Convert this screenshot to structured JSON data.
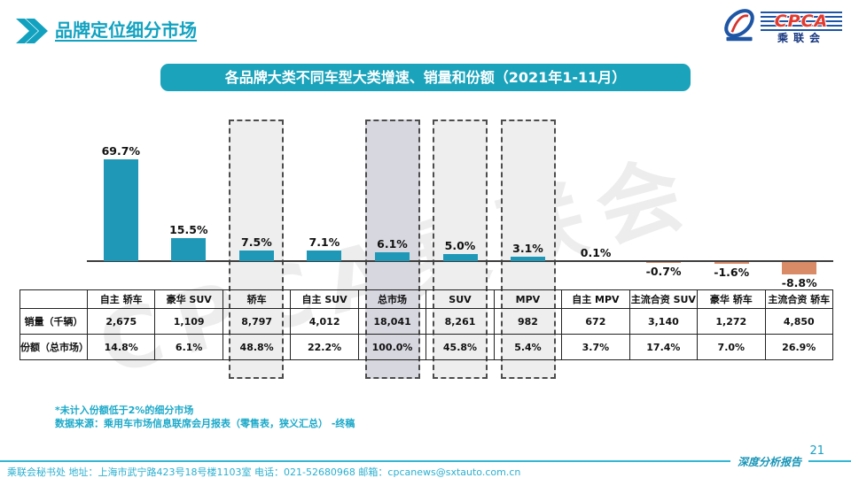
{
  "header": {
    "title": "品牌定位细分市场"
  },
  "banner": {
    "text": "各品牌大类不同车型大类增速、销量和份额（2021年1-11月）"
  },
  "logo": {
    "cpca": "CPCA",
    "name": "乘联会"
  },
  "watermark": {
    "text": "CPCA乘联会"
  },
  "chart_data": {
    "type": "bar",
    "title": "各品牌大类不同车型大类增速、销量和份额（2021年1-11月）",
    "value_unit": "%",
    "ylim": [
      -10,
      75
    ],
    "grid": false,
    "legend": "none",
    "bar_color_positive": "#1f98b7",
    "bar_color_negative": "#d98b68",
    "highlight_light_color": "#eeeeee",
    "highlight_dark_color": "#d7d7e0",
    "row_headers": [
      "销量（千辆）",
      "份额（总市场）"
    ],
    "columns": [
      {
        "label": "自主 轿车",
        "growth": 69.7,
        "growth_label": "69.7%",
        "sales": "2,675",
        "share": "14.8%",
        "highlight": "none"
      },
      {
        "label": "豪华 SUV",
        "growth": 15.5,
        "growth_label": "15.5%",
        "sales": "1,109",
        "share": "6.1%",
        "highlight": "none"
      },
      {
        "label": "轿车",
        "growth": 7.5,
        "growth_label": "7.5%",
        "sales": "8,797",
        "share": "48.8%",
        "highlight": "light"
      },
      {
        "label": "自主 SUV",
        "growth": 7.1,
        "growth_label": "7.1%",
        "sales": "4,012",
        "share": "22.2%",
        "highlight": "none"
      },
      {
        "label": "总市场",
        "growth": 6.1,
        "growth_label": "6.1%",
        "sales": "18,041",
        "share": "100.0%",
        "highlight": "dark"
      },
      {
        "label": "SUV",
        "growth": 5.0,
        "growth_label": "5.0%",
        "sales": "8,261",
        "share": "45.8%",
        "highlight": "light"
      },
      {
        "label": "MPV",
        "growth": 3.1,
        "growth_label": "3.1%",
        "sales": "982",
        "share": "5.4%",
        "highlight": "light"
      },
      {
        "label": "自主 MPV",
        "growth": 0.1,
        "growth_label": "0.1%",
        "sales": "672",
        "share": "3.7%",
        "highlight": "none"
      },
      {
        "label": "主流合资 SUV",
        "growth": -0.7,
        "growth_label": "-0.7%",
        "sales": "3,140",
        "share": "17.4%",
        "highlight": "none"
      },
      {
        "label": "豪华 轿车",
        "growth": -1.6,
        "growth_label": "-1.6%",
        "sales": "1,272",
        "share": "7.0%",
        "highlight": "none"
      },
      {
        "label": "主流合资 轿车",
        "growth": -8.8,
        "growth_label": "-8.8%",
        "sales": "4,850",
        "share": "26.9%",
        "highlight": "none"
      }
    ]
  },
  "notes": [
    "*未计入份额低于2%的细分市场",
    "数据来源：乘用车市场信息联席会月报表（零售表，狭义汇总） -终稿"
  ],
  "footer": {
    "info": "乘联会秘书处  地址：上海市武宁路423号18号楼1103室  电话：021-52680968  邮箱：cpcanews@sxtauto.com.cn",
    "page_number": "21",
    "report_label": "深度分析报告"
  }
}
